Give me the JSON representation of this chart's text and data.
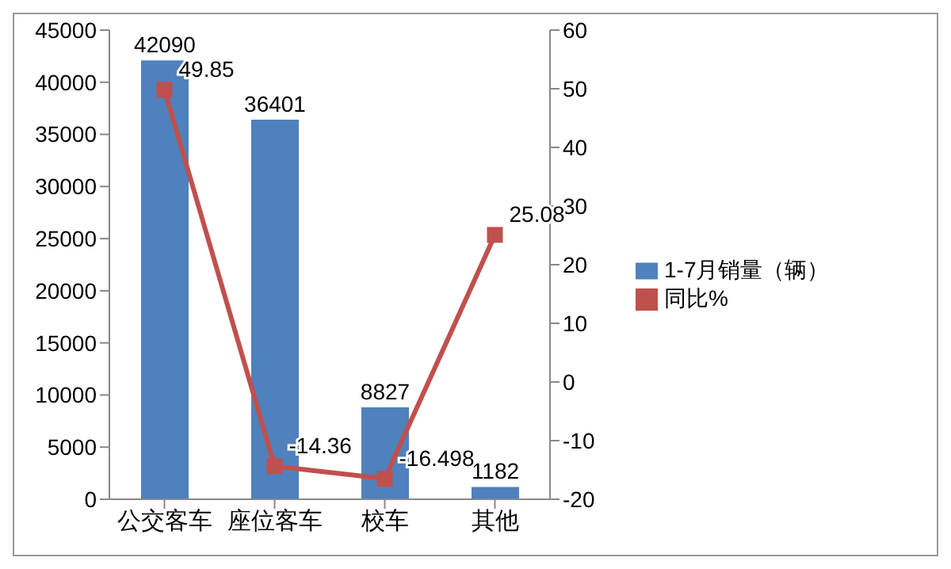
{
  "chart_data": {
    "type": "bar",
    "categories": [
      "公交客车",
      "座位客车",
      "校车",
      "其他"
    ],
    "series": [
      {
        "name": "1-7月销量（辆）",
        "color": "#4f81bd",
        "values": [
          42090,
          36401,
          8827,
          1182
        ]
      },
      {
        "name": "同比%",
        "type": "line",
        "axis": "y2",
        "color": "#c0504d",
        "values": [
          49.85,
          -14.36,
          -16.498,
          25.08
        ]
      }
    ],
    "ylim": [
      0,
      45000
    ],
    "yticks": [
      0,
      5000,
      10000,
      15000,
      20000,
      25000,
      30000,
      35000,
      40000,
      45000
    ],
    "y2lim": [
      -20,
      60
    ],
    "y2ticks": [
      -20,
      -10,
      0,
      10,
      20,
      30,
      40,
      50,
      60
    ],
    "data_labels": true,
    "legend": "right",
    "marker": "square"
  }
}
